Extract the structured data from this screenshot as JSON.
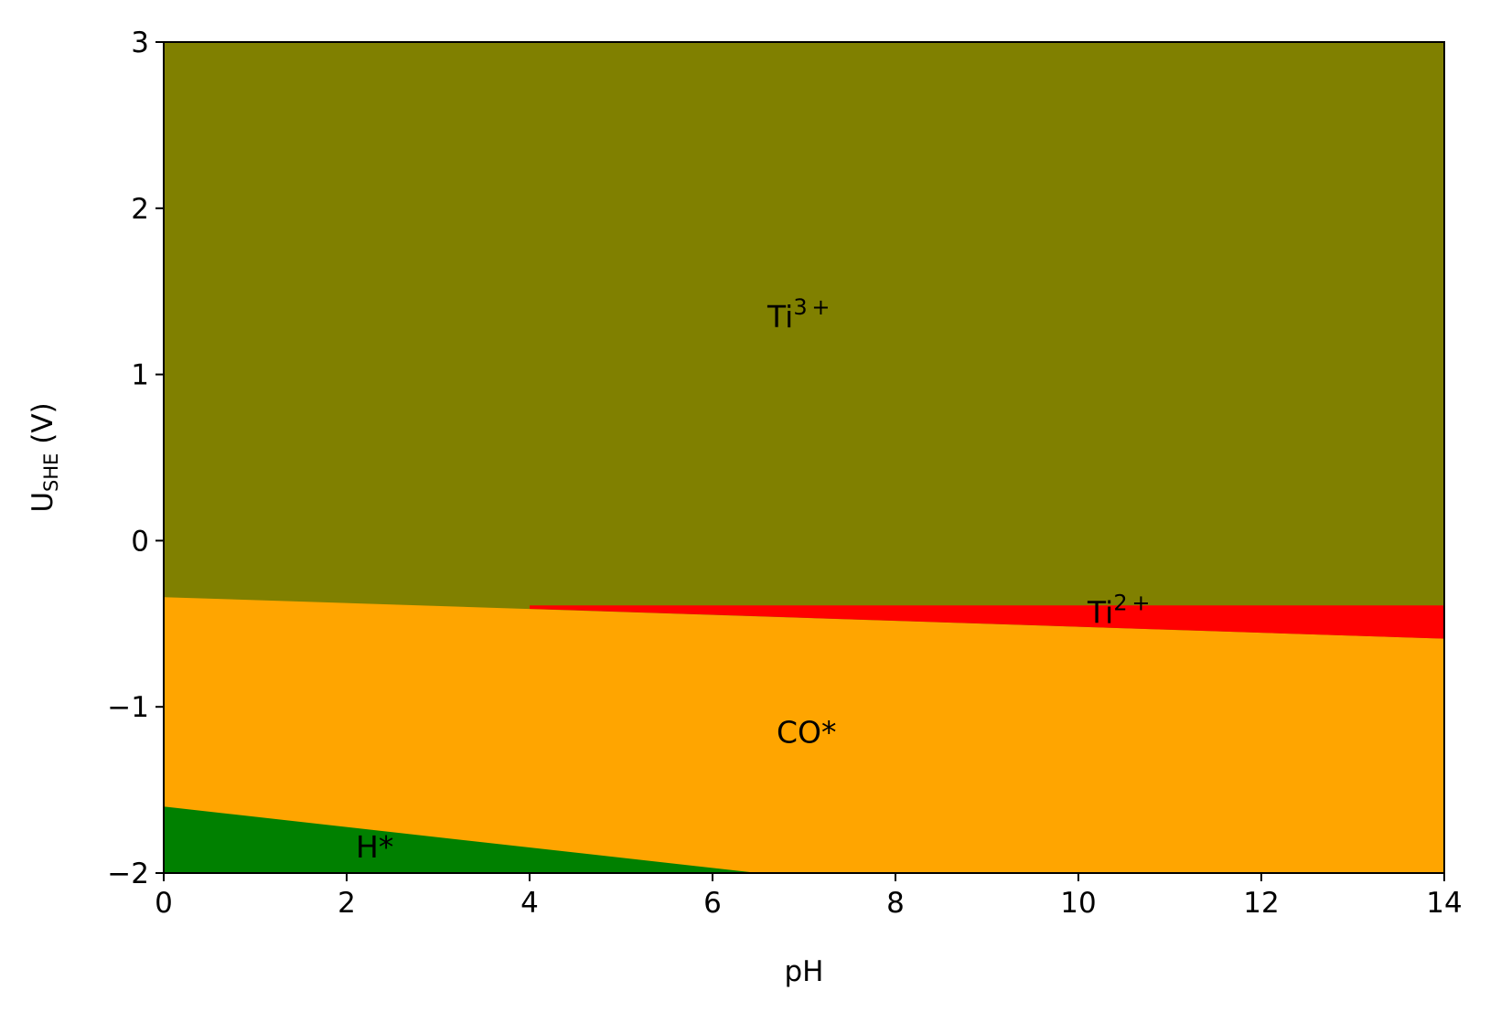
{
  "chart_data": {
    "type": "area",
    "title": "",
    "xlabel": "pH",
    "ylabel": {
      "main": "U",
      "sub": "SHE",
      "suffix": " (V)"
    },
    "xlim": [
      0,
      14
    ],
    "ylim": [
      -2,
      3
    ],
    "xticks": [
      0,
      2,
      4,
      6,
      8,
      10,
      12,
      14
    ],
    "yticks": [
      -2,
      -1,
      0,
      1,
      2,
      3
    ],
    "xtick_labels": [
      "0",
      "2",
      "4",
      "6",
      "8",
      "10",
      "12",
      "14"
    ],
    "ytick_labels": [
      "−2",
      "−1",
      "0",
      "1",
      "2",
      "3"
    ],
    "grid": false,
    "colors": {
      "ti3": "#808000",
      "ti2": "#ff0000",
      "co": "#ffa500",
      "h": "#008000"
    },
    "regions": [
      {
        "name": "Ti3+",
        "color_key": "ti3",
        "boundary_lower": [
          [
            0,
            -0.34
          ],
          [
            14,
            -0.39
          ]
        ],
        "boundary_upper": [
          [
            0,
            3
          ],
          [
            14,
            3
          ]
        ]
      },
      {
        "name": "Ti2+",
        "color_key": "ti2",
        "boundary_lower": [
          [
            4.0,
            -0.41
          ],
          [
            14,
            -0.59
          ]
        ],
        "boundary_upper": [
          [
            4.0,
            -0.39
          ],
          [
            14,
            -0.39
          ]
        ]
      },
      {
        "name": "CO*",
        "color_key": "co",
        "boundary_lower": [
          [
            0,
            -1.6
          ],
          [
            6.5,
            -2.0
          ]
        ],
        "boundary_upper": [
          [
            0,
            -0.34
          ],
          [
            14,
            -0.59
          ]
        ]
      },
      {
        "name": "H*",
        "color_key": "h",
        "boundary_lower": [
          [
            0,
            -2
          ],
          [
            6.5,
            -2
          ]
        ],
        "boundary_upper": [
          [
            0,
            -1.6
          ],
          [
            6.5,
            -2.0
          ]
        ]
      }
    ],
    "annotations": [
      {
        "id": "ti3",
        "base": "Ti",
        "sup": "3+",
        "x": 6.6,
        "y": 1.35
      },
      {
        "id": "ti2",
        "base": "Ti",
        "sup": "2+",
        "x": 10.1,
        "y": -0.43
      },
      {
        "id": "co",
        "base": "CO*",
        "sup": "",
        "x": 6.7,
        "y": -1.15
      },
      {
        "id": "h",
        "base": "H*",
        "sup": "",
        "x": 2.1,
        "y": -1.84
      }
    ]
  }
}
